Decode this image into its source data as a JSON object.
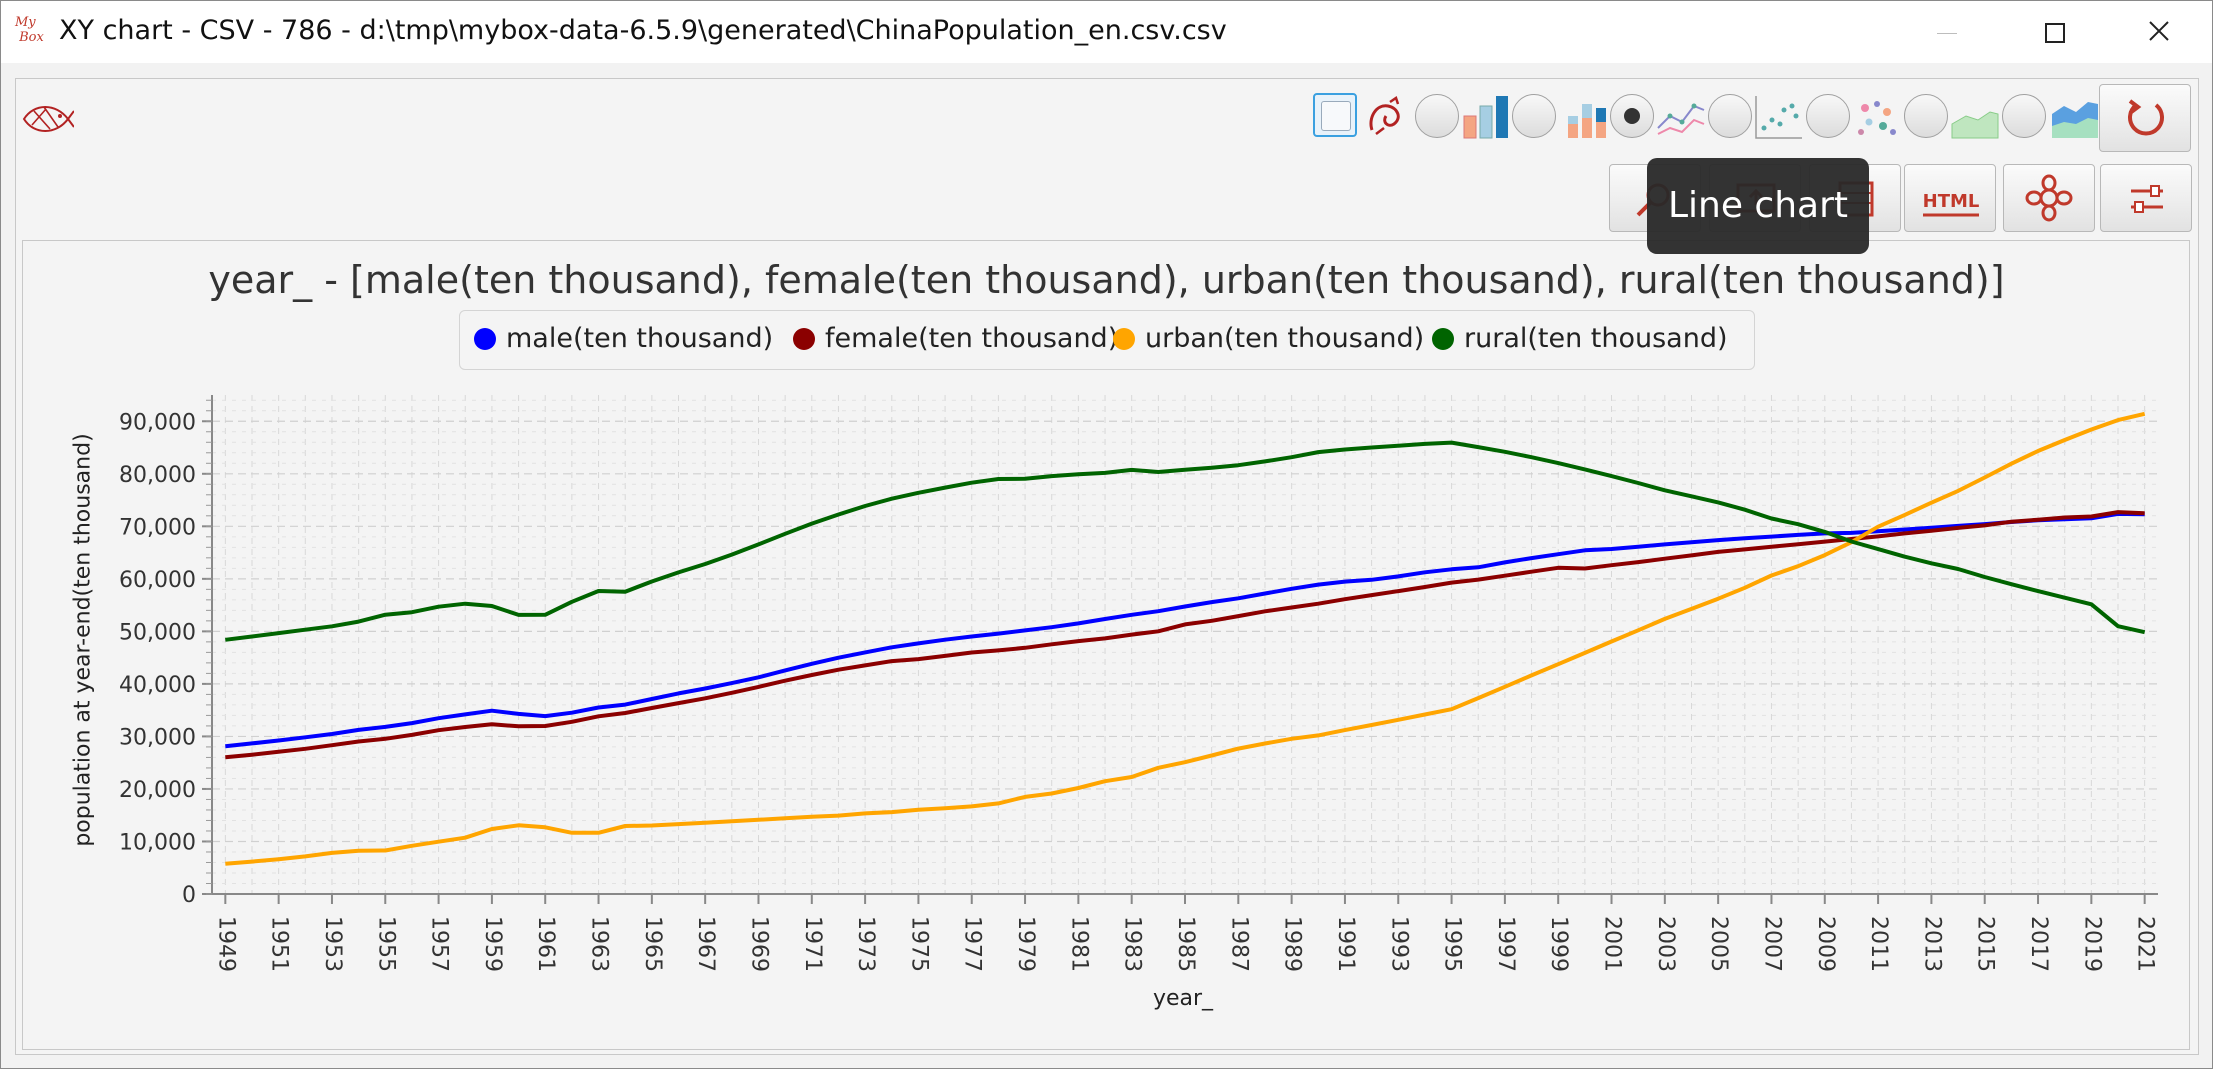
{
  "window": {
    "title": "XY chart - CSV - 786 - d:\\tmp\\mybox-data-6.5.9\\generated\\ChinaPopulation_en.csv.csv",
    "app_icon_text": "My Box"
  },
  "toolbar": {
    "chart_types": [
      {
        "name": "bar-chart",
        "selected": false
      },
      {
        "name": "stacked-bar-chart",
        "selected": false
      },
      {
        "name": "line-chart",
        "selected": true
      },
      {
        "name": "scatter-chart",
        "selected": false
      },
      {
        "name": "bubble-chart",
        "selected": false
      },
      {
        "name": "area-chart",
        "selected": false
      },
      {
        "name": "stacked-area-chart",
        "selected": false
      }
    ],
    "html_button_label": "HTML"
  },
  "tooltip": {
    "text": "Line chart"
  },
  "colors": {
    "male": "#0000ff",
    "female": "#8b0000",
    "urban": "#ffa500",
    "rural": "#006400"
  },
  "chart_data": {
    "type": "line",
    "title": "year_ - [male(ten thousand), female(ten thousand), urban(ten thousand), rural(ten thousand)]",
    "xlabel": "year_",
    "ylabel": "population at year-end(ten thousand)",
    "ylim": [
      0,
      95000
    ],
    "yticks": [
      "0",
      "10,000",
      "20,000",
      "30,000",
      "40,000",
      "50,000",
      "60,000",
      "70,000",
      "80,000",
      "90,000"
    ],
    "xtick_labels": [
      "1949",
      "1951",
      "1953",
      "1955",
      "1957",
      "1959",
      "1961",
      "1963",
      "1965",
      "1967",
      "1969",
      "1971",
      "1973",
      "1975",
      "1977",
      "1979",
      "1981",
      "1983",
      "1985",
      "1987",
      "1989",
      "1991",
      "1993",
      "1995",
      "1997",
      "1999",
      "2001",
      "2003",
      "2005",
      "2007",
      "2009",
      "2011",
      "2013",
      "2015",
      "2017",
      "2019",
      "2021"
    ],
    "grid": true,
    "legend_position": "top",
    "x": [
      1949,
      1950,
      1951,
      1952,
      1953,
      1954,
      1955,
      1956,
      1957,
      1958,
      1959,
      1960,
      1961,
      1962,
      1963,
      1964,
      1965,
      1966,
      1967,
      1968,
      1969,
      1970,
      1971,
      1972,
      1973,
      1974,
      1975,
      1976,
      1977,
      1978,
      1979,
      1980,
      1981,
      1982,
      1983,
      1984,
      1985,
      1986,
      1987,
      1988,
      1989,
      1990,
      1991,
      1992,
      1993,
      1994,
      1995,
      1996,
      1997,
      1998,
      1999,
      2000,
      2001,
      2002,
      2003,
      2004,
      2005,
      2006,
      2007,
      2008,
      2009,
      2010,
      2011,
      2012,
      2013,
      2014,
      2015,
      2016,
      2017,
      2018,
      2019,
      2020,
      2021
    ],
    "series": [
      {
        "name": "male(ten thousand)",
        "color": "#0000ff",
        "values": [
          28145,
          28669,
          29231,
          29833,
          30468,
          31242,
          31809,
          32536,
          33469,
          34195,
          34890,
          34283,
          33874,
          34517,
          35497,
          36067,
          37128,
          38189,
          39115,
          40142,
          41250,
          42565,
          43819,
          44988,
          45990,
          46958,
          47707,
          48417,
          49028,
          49567,
          50192,
          50785,
          51519,
          52353,
          53152,
          53848,
          54725,
          55581,
          56290,
          57201,
          58099,
          58904,
          59466,
          59811,
          60472,
          61246,
          61808,
          62200,
          63131,
          63940,
          64692,
          65437,
          65672,
          66115,
          66556,
          66976,
          67375,
          67728,
          68048,
          68357,
          68647,
          68748,
          69068,
          69395,
          69728,
          70079,
          70414,
          70815,
          71137,
          71351,
          71527,
          72357,
          72311
        ]
      },
      {
        "name": "female(ten thousand)",
        "color": "#8b0000",
        "values": [
          26022,
          26527,
          27069,
          27649,
          28328,
          29024,
          29556,
          30292,
          31184,
          31799,
          32317,
          31924,
          31985,
          32778,
          33839,
          34455,
          35410,
          36353,
          37253,
          38308,
          39421,
          40617,
          41701,
          42694,
          43515,
          44345,
          44713,
          45336,
          45981,
          46374,
          46880,
          47529,
          48138,
          48664,
          49377,
          50011,
          51326,
          52005,
          52914,
          53813,
          54552,
          55260,
          56117,
          56903,
          57675,
          58439,
          59290,
          59847,
          60603,
          61358,
          62104,
          61978,
          62598,
          63186,
          63833,
          64456,
          65124,
          65600,
          66103,
          66591,
          67083,
          67592,
          68086,
          68651,
          69146,
          69706,
          70181,
          70876,
          71253,
          71681,
          71864,
          72699,
          72500
        ]
      },
      {
        "name": "urban(ten thousand)",
        "color": "#ffa500",
        "values": [
          5765,
          6169,
          6632,
          7163,
          7826,
          8249,
          8285,
          9185,
          9949,
          10721,
          12371,
          13073,
          12707,
          11659,
          11646,
          12950,
          13045,
          13313,
          13548,
          13838,
          14117,
          14424,
          14711,
          14935,
          15345,
          15595,
          16030,
          16341,
          16669,
          17245,
          18495,
          19140,
          20171,
          21480,
          22274,
          24017,
          25094,
          26366,
          27674,
          28661,
          29540,
          30195,
          31203,
          32175,
          33173,
          34169,
          35174,
          37304,
          39449,
          41608,
          43748,
          45906,
          48064,
          50212,
          52376,
          54283,
          56212,
          58288,
          60633,
          62403,
          64512,
          66978,
          69927,
          72175,
          74502,
          76738,
          79302,
          81924,
          84343,
          86433,
          88426,
          90220,
          91425
        ]
      },
      {
        "name": "rural(ten thousand)",
        "color": "#006400",
        "values": [
          48402,
          49027,
          49668,
          50319,
          50970,
          51864,
          53180,
          53643,
          54704,
          55273,
          54836,
          53134,
          53152,
          55636,
          57690,
          57549,
          59493,
          61229,
          62820,
          64612,
          66554,
          68568,
          70518,
          72242,
          73866,
          75264,
          76390,
          77376,
          78305,
          79014,
          79047,
          79565,
          79901,
          80174,
          80734,
          80340,
          80757,
          81141,
          81626,
          82365,
          83164,
          84138,
          84620,
          84996,
          85344,
          85681,
          85947,
          85085,
          84177,
          83153,
          82038,
          80837,
          79563,
          78241,
          76851,
          75705,
          74544,
          73160,
          71496,
          70399,
          68938,
          67113,
          65656,
          64222,
          62961,
          61866,
          60346,
          58973,
          57661,
          56401,
          55162,
          50992,
          49835
        ]
      }
    ]
  }
}
